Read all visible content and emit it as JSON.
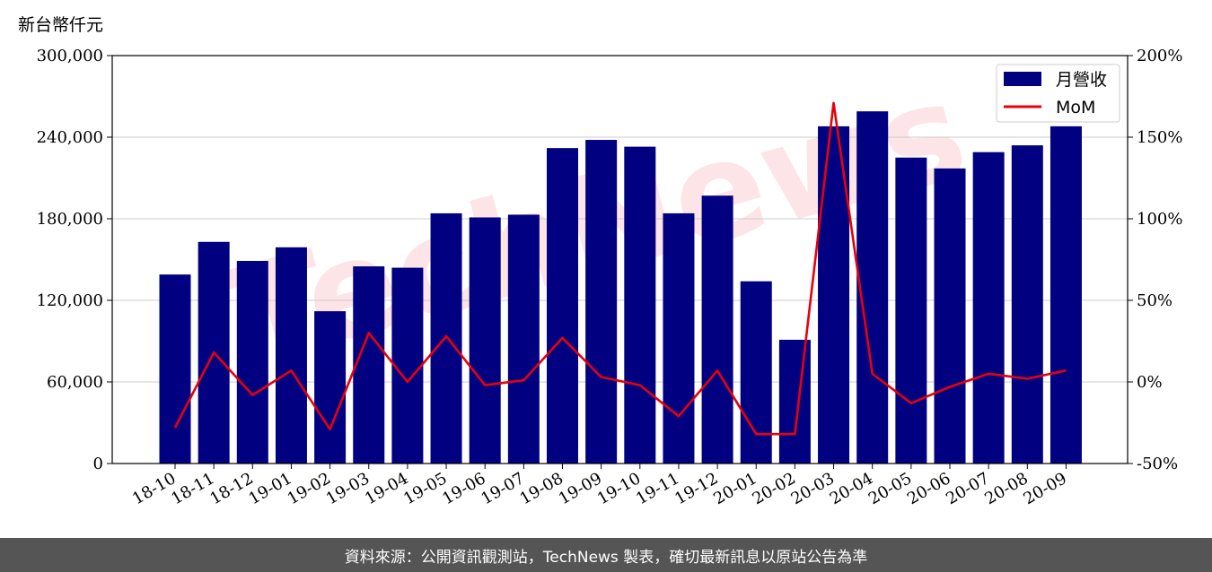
{
  "chart_data": {
    "type": "bar",
    "unit_label": "新台幣仟元",
    "categories": [
      "18-10",
      "18-11",
      "18-12",
      "19-01",
      "19-02",
      "19-03",
      "19-04",
      "19-05",
      "19-06",
      "19-07",
      "19-08",
      "19-09",
      "19-10",
      "19-11",
      "19-12",
      "20-01",
      "20-02",
      "20-03",
      "20-04",
      "20-05",
      "20-06",
      "20-07",
      "20-08",
      "20-09"
    ],
    "series": [
      {
        "name": "月營收",
        "type": "bar",
        "axis": "left",
        "color": "#000080",
        "values": [
          139000,
          163000,
          149000,
          159000,
          112000,
          145000,
          144000,
          184000,
          181000,
          183000,
          232000,
          238000,
          233000,
          184000,
          197000,
          134000,
          91000,
          248000,
          259000,
          225000,
          217000,
          229000,
          234000,
          248000
        ]
      },
      {
        "name": "MoM",
        "type": "line",
        "axis": "right",
        "color": "#e8000b",
        "values": [
          -28,
          18,
          -8,
          7,
          -29,
          30,
          0,
          28,
          -2,
          1,
          27,
          3,
          -2,
          -21,
          7,
          -32,
          -32,
          171,
          5,
          -13,
          -3,
          5,
          2,
          7
        ]
      }
    ],
    "left_axis": {
      "ylim": [
        0,
        300000
      ],
      "ticks": [
        0,
        60000,
        120000,
        180000,
        240000,
        300000
      ],
      "tick_labels": [
        "0",
        "60,000",
        "120,000",
        "180,000",
        "240,000",
        "300,000"
      ]
    },
    "right_axis": {
      "ylim": [
        -50,
        200
      ],
      "ticks": [
        -50,
        0,
        50,
        100,
        150,
        200
      ],
      "tick_labels": [
        "-50%",
        "0%",
        "50%",
        "100%",
        "150%",
        "200%"
      ]
    },
    "grid": true,
    "legend_position": "top-right"
  },
  "footer": {
    "text": "資料來源：公開資訊觀測站，TechNews 製表，確切最新訊息以原站公告為準"
  },
  "watermark": {
    "text": "TechNews",
    "color": "#fde4e6"
  }
}
